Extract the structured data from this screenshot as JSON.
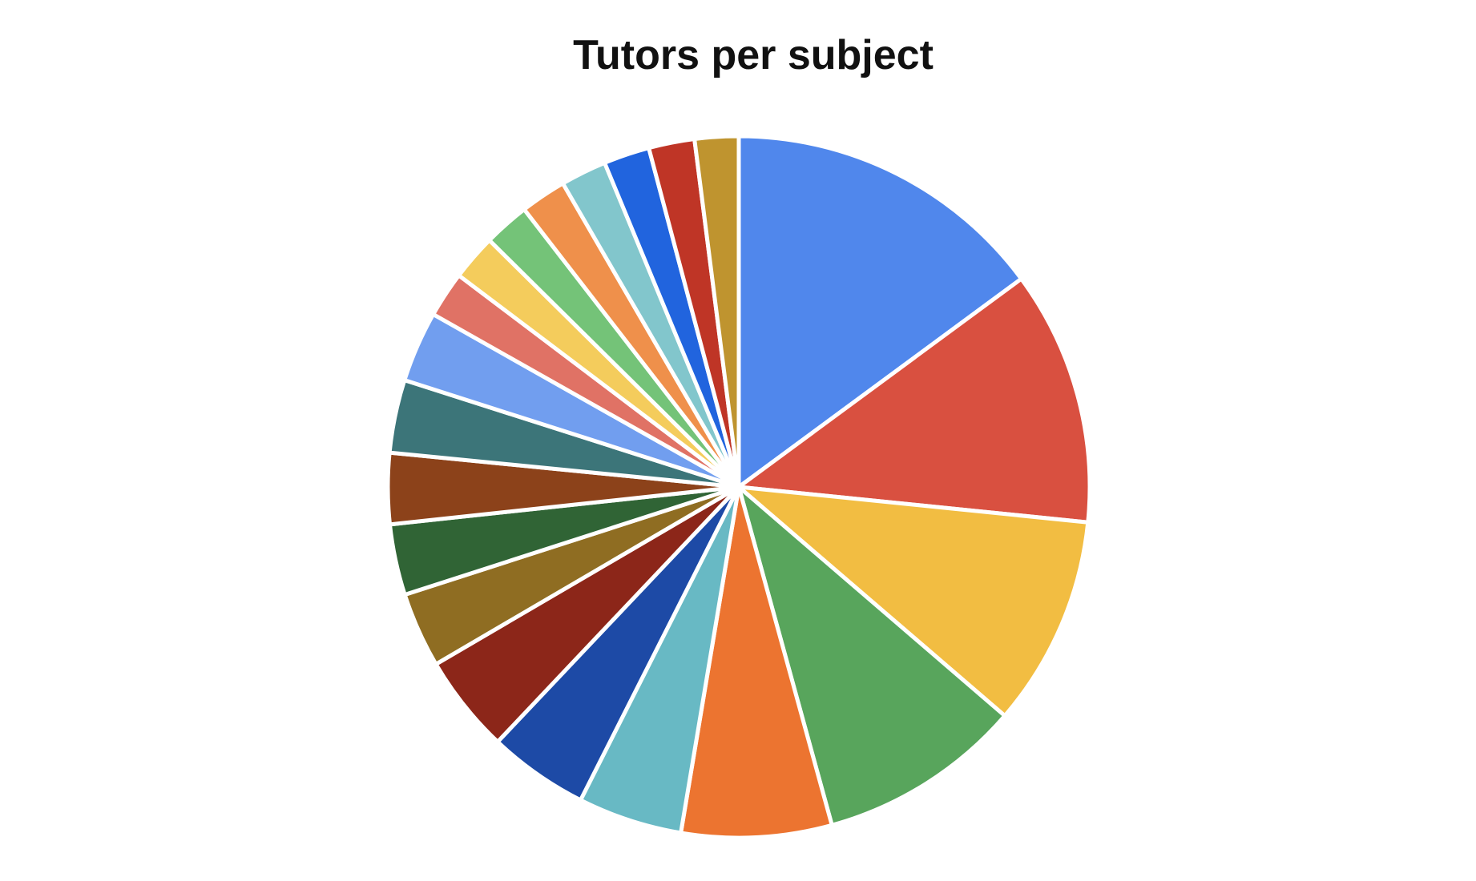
{
  "chart_data": {
    "type": "pie",
    "title": "Tutors per subject",
    "start_angle_deg": 0,
    "direction": "clockwise",
    "legend": "none",
    "slices": [
      {
        "value": 15.5,
        "color": "#5087EC"
      },
      {
        "value": 12.2,
        "color": "#D95040"
      },
      {
        "value": 10.1,
        "color": "#F2BD42"
      },
      {
        "value": 9.8,
        "color": "#58A55C"
      },
      {
        "value": 7.2,
        "color": "#EC7430"
      },
      {
        "value": 5.0,
        "color": "#68B9C4"
      },
      {
        "value": 4.8,
        "color": "#1D4AA6"
      },
      {
        "value": 4.7,
        "color": "#8C2619"
      },
      {
        "value": 3.6,
        "color": "#8F6D22"
      },
      {
        "value": 3.4,
        "color": "#306435"
      },
      {
        "value": 3.4,
        "color": "#8C421A"
      },
      {
        "value": 3.5,
        "color": "#3C7579"
      },
      {
        "value": 3.4,
        "color": "#719EEF"
      },
      {
        "value": 2.2,
        "color": "#E07265"
      },
      {
        "value": 2.2,
        "color": "#F4CC5C"
      },
      {
        "value": 2.2,
        "color": "#74C378"
      },
      {
        "value": 2.2,
        "color": "#EF904B"
      },
      {
        "value": 2.2,
        "color": "#82C6CC"
      },
      {
        "value": 2.2,
        "color": "#2164DE"
      },
      {
        "value": 2.2,
        "color": "#BF3526"
      },
      {
        "value": 2.1,
        "color": "#BF942F"
      }
    ]
  }
}
